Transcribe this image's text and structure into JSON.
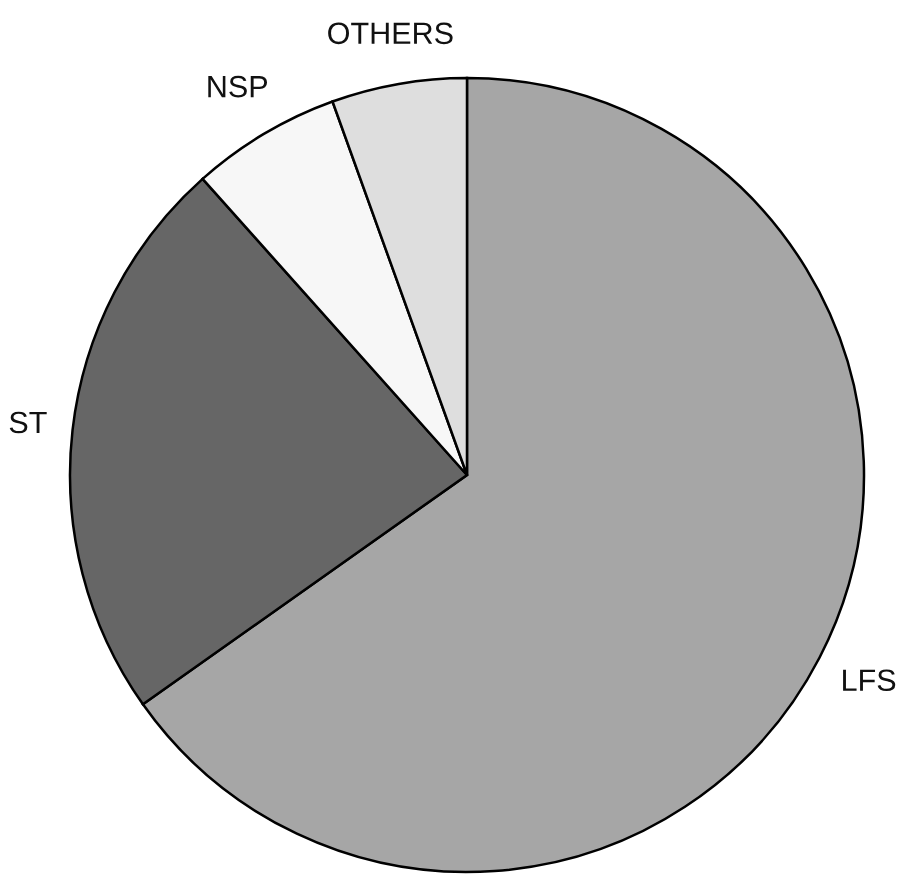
{
  "chart_data": {
    "type": "pie",
    "categories": [
      "LFS",
      "ST",
      "NSP",
      "OTHERS"
    ],
    "values": [
      65.2,
      23.2,
      6.1,
      5.5
    ],
    "colors": [
      "#a6a6a6",
      "#666666",
      "#f7f7f7",
      "#dedede"
    ]
  }
}
